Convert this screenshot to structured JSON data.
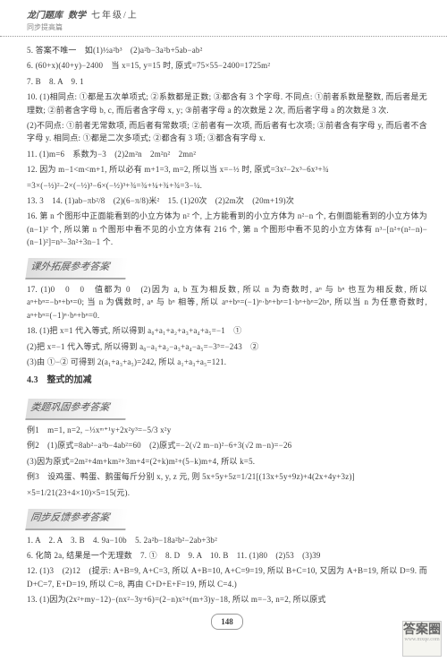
{
  "header": {
    "logo": "龙门题库",
    "subject": "数学",
    "grade": "七年级/上",
    "subtitle": "同步提高篇"
  },
  "body": {
    "p5": "5. 答案不唯一　如(1)½a²b³　(2)a²b−3a²b+5ab−ab²",
    "p6": "6. (60+x)(40+y)−2400　当 x=15, y=15 时, 原式=75×55−2400=1725m²",
    "p7": "7. B　8. A　9. 1",
    "p10a": "10. (1)相同点: ①都是五次单项式; ②系数都是正数; ③都含有 3 个字母. 不同点: ①前者系数是整数, 而后者是无理数; ②前者含字母 b, c, 而后者含字母 x, y; ③前者字母 a 的次数是 2 次, 而后者字母 a 的次数是 3 次.",
    "p10b": "(2)不同点: ①前者无常数项, 而后者有常数项; ②前者有一次项, 而后者有七次项; ③前者含有字母 y, 而后者不含字母 y. 相同点: ①都是二次多项式; ②都含有 3 项; ③都含有字母 x.",
    "p11": "11. (1)m=6　系数为−3　(2)2m²n　2m²n²　2mn²",
    "p12a": "12. 因为 m−1<m<m+1, 所以必有 m+1=3, m=2, 所以当 x=−½ 时, 原式=3x²−2x³−6x³+¾",
    "p12b": "=3×(−½)²−2×(−½)³−6×(−½)³+¾=¾+¼+¾+¾=3−¼.",
    "p13_15": "13. 3　14. (1)ab−πb²/8　(2)(6−π/8)米²　15. (1)20次　(2)2m次　(20m+19)次",
    "p16": "16. 第 n 个图形中正面能看到的小立方体为 n² 个, 上方能看到的小立方体为 n²−n 个, 右侧面能看到的小立方体为 (n−1)² 个, 所以第 n 个图形中看不见的小立方体有 216 个, 第 n 个图形中看不见的小立方体有 n³−[n²+(n²−n)−(n−1)²]=n³−3n²+3n−1 个."
  },
  "banner1": "课外拓展参考答案",
  "ext": {
    "p17a": "17. (1)0　0　0　值都为 0　(2)因为 a, b 互为相反数, 所以 n 为奇数时, aⁿ 与 bⁿ 也互为相反数, 所以 aⁿ+bⁿ=−bⁿ+bⁿ=0; 当 n 为偶数时, aⁿ 与 bⁿ 相等, 所以 aⁿ+bⁿ=(−1)ⁿ·bⁿ+bⁿ=1·bⁿ+bⁿ=2bⁿ, 所以当 n 为任意奇数时, aⁿ+bⁿ=(−1)ⁿ·bⁿ+bⁿ=0.",
    "p18a": "18. (1)把 x=1 代入等式, 所以得到 a₀+a₁+a₂+a₃+a₄+a₅=−1　①",
    "p18b": "(2)把 x=−1 代入等式, 所以得到 a₀−a₁+a₂−a₃+a₄−a₅=−3⁵=−243　②",
    "p18c": "(3)由 ①−② 可得到 2(a₁+a₃+a₅)=242, 所以 a₁+a₃+a₅=121."
  },
  "sec43": "4.3　整式的加减",
  "banner2": "类题巩固参考答案",
  "lei": {
    "e1": "例1　m=1, n=2, −⅓xᵐ⁺¹y+2x²y³=−5/3 x²y",
    "e2a": "例2　(1)原式=8ab²−a²b−4ab²=60　(2)原式=−2(√2 m−n)²−6+3(√2 m−n)=−26",
    "e2b": "(3)因为原式=2m²+4m+km²+3m+4=(2+k)m²+(5−k)m+4, 所以 k=5.",
    "e3": "例3　设鸡蛋、鸭蛋、鹅蛋每斤分别 x, y, z 元, 则 5x+5y+5z=1/21[(13x+5y+9z)+4(2x+4y+3z)]",
    "e3b": "×5=1/21(23+4×10)×5=15(元)."
  },
  "banner3": "同步反馈参考答案",
  "tb": {
    "p1_5": "1. A　2. A　3. B　4. 9a−10b　5. 2a²b−18a²b²−2ab+3b²",
    "p6_11": "6. 化简 2a, 结果是一个无理数　7. ①　8. D　9. A　10. B　11. (1)80　(2)53　(3)39",
    "p12": "12. (1)3　(2)12　(提示: A+B=9, A+C=3, 所以 A+B=10, A+C=9=19, 所以 B+C=10, 又因为 A+B=19, 所以 D=9. 而 D+C=7, E+D=19, 所以 C=8, 再由 C+D+E+F=19, 所以 C=4.)",
    "p13": "13. (1)因为(2x²+my−12)−(nx²−3y+6)=(2−n)x²+(m+3)y−18, 所以 m=−3, n=2, 所以原式"
  },
  "page": "148",
  "wm": {
    "top": "答案圈",
    "url": "www.mxqe.com"
  }
}
